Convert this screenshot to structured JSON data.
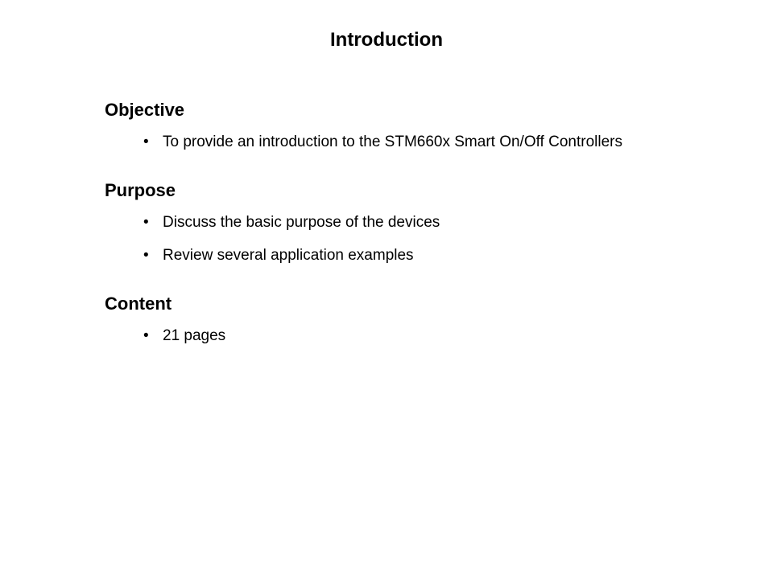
{
  "title": "Introduction",
  "sections": [
    {
      "heading": "Objective",
      "items": [
        "To provide an introduction to the STM660x Smart On/Off Controllers"
      ]
    },
    {
      "heading": "Purpose",
      "items": [
        "Discuss the basic purpose of the devices",
        "Review several application examples"
      ]
    },
    {
      "heading": "Content",
      "items": [
        "21 pages"
      ]
    }
  ],
  "style": {
    "background_color": "#ffffff",
    "text_color": "#000000",
    "title_fontsize": 24,
    "heading_fontsize": 22,
    "bullet_fontsize": 19,
    "font_family": "Arial"
  }
}
